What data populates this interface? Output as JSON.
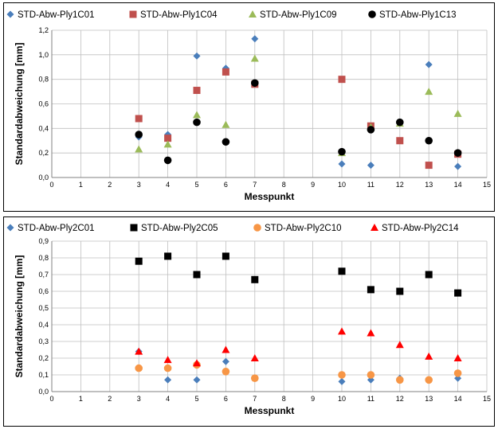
{
  "chart_data": [
    {
      "type": "scatter",
      "xlabel": "Messpunkt",
      "ylabel": "Standardabweichung [mm]",
      "xlim": [
        0,
        15
      ],
      "ylim": [
        0,
        1.2
      ],
      "x_ticks": [
        "0",
        "1",
        "2",
        "3",
        "4",
        "5",
        "6",
        "7",
        "8",
        "9",
        "10",
        "11",
        "12",
        "13",
        "14",
        "15"
      ],
      "y_ticks": [
        "0,0",
        "0,2",
        "0,4",
        "0,6",
        "0,8",
        "1,0",
        "1,2"
      ],
      "grid": true,
      "legend": "top",
      "series": [
        {
          "name": "STD-Abw-Ply1C01",
          "marker": "diamond",
          "color": "#4a7ebb",
          "x": [
            3,
            4,
            5,
            6,
            7,
            10,
            11,
            12,
            13,
            14
          ],
          "y": [
            0.33,
            0.35,
            0.99,
            0.89,
            1.13,
            0.11,
            0.1,
            0.44,
            0.92,
            0.09
          ]
        },
        {
          "name": "STD-Abw-Ply1C04",
          "marker": "square",
          "color": "#c0504d",
          "x": [
            3,
            4,
            5,
            6,
            7,
            10,
            11,
            12,
            13,
            14
          ],
          "y": [
            0.48,
            0.32,
            0.71,
            0.86,
            0.76,
            0.8,
            0.42,
            0.3,
            0.1,
            0.19
          ]
        },
        {
          "name": "STD-Abw-Ply1C09",
          "marker": "triangle",
          "color": "#9bbb59",
          "x": [
            3,
            4,
            5,
            6,
            7,
            10,
            11,
            12,
            13,
            14
          ],
          "y": [
            0.23,
            0.27,
            0.51,
            0.43,
            0.97,
            0.2,
            0.41,
            0.44,
            0.7,
            0.52
          ]
        },
        {
          "name": "STD-Abw-Ply1C13",
          "marker": "circle",
          "color": "#000000",
          "x": [
            3,
            4,
            5,
            6,
            7,
            10,
            11,
            12,
            13,
            14
          ],
          "y": [
            0.35,
            0.14,
            0.45,
            0.29,
            0.77,
            0.21,
            0.39,
            0.45,
            0.3,
            0.2
          ]
        }
      ]
    },
    {
      "type": "scatter",
      "xlabel": "Messpunkt",
      "ylabel": "Standardabweichung [mm]",
      "xlim": [
        0,
        15
      ],
      "ylim": [
        0,
        0.9
      ],
      "x_ticks": [
        "0",
        "1",
        "2",
        "3",
        "4",
        "5",
        "6",
        "7",
        "8",
        "9",
        "10",
        "11",
        "12",
        "13",
        "14",
        "15"
      ],
      "y_ticks": [
        "0,0",
        "0,1",
        "0,2",
        "0,3",
        "0,4",
        "0,5",
        "0,6",
        "0,7",
        "0,8",
        "0,9"
      ],
      "grid": true,
      "legend": "top",
      "series": [
        {
          "name": "STD-Abw-Ply2C01",
          "marker": "diamond",
          "color": "#4a7ebb",
          "x": [
            3,
            4,
            5,
            6,
            7,
            10,
            11,
            12,
            13,
            14
          ],
          "y": [
            0.24,
            0.07,
            0.07,
            0.18,
            0.08,
            0.06,
            0.07,
            0.08,
            0.07,
            0.08
          ]
        },
        {
          "name": "STD-Abw-Ply2C05",
          "marker": "square",
          "color": "#000000",
          "x": [
            3,
            4,
            5,
            6,
            7,
            10,
            11,
            12,
            13,
            14
          ],
          "y": [
            0.78,
            0.81,
            0.7,
            0.81,
            0.67,
            0.72,
            0.61,
            0.6,
            0.7,
            0.59
          ]
        },
        {
          "name": "STD-Abw-Ply2C10",
          "marker": "circle",
          "color": "#f79646",
          "x": [
            3,
            4,
            5,
            6,
            7,
            10,
            11,
            12,
            13,
            14
          ],
          "y": [
            0.14,
            0.14,
            0.16,
            0.12,
            0.08,
            0.1,
            0.1,
            0.07,
            0.07,
            0.11
          ]
        },
        {
          "name": "STD-Abw-Ply2C14",
          "marker": "triangle",
          "color": "#ff0000",
          "x": [
            3,
            4,
            5,
            6,
            7,
            10,
            11,
            12,
            13,
            14
          ],
          "y": [
            0.24,
            0.19,
            0.17,
            0.25,
            0.2,
            0.36,
            0.35,
            0.28,
            0.21,
            0.2
          ]
        }
      ]
    }
  ]
}
